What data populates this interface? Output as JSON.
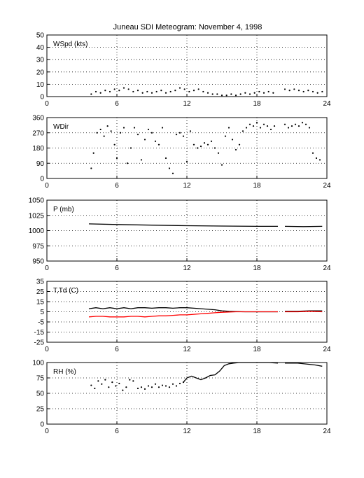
{
  "title": "Juneau SDI Meteogram:  November  4, 1998",
  "chart_data": [
    {
      "type": "scatter",
      "panel_label": "WSpd (kts)",
      "xlim": [
        0,
        24
      ],
      "xticks": [
        0,
        6,
        12,
        18,
        24
      ],
      "ylim": [
        0,
        50
      ],
      "yticks": [
        0,
        10,
        20,
        30,
        40,
        50
      ],
      "grid": true,
      "series": [
        {
          "color": "#000000",
          "style": "dots",
          "x": [
            3.8,
            4.2,
            4.6,
            5.0,
            5.4,
            5.8,
            6.2,
            6.6,
            7.0,
            7.4,
            7.8,
            8.2,
            8.6,
            9.0,
            9.4,
            9.8,
            10.2,
            10.6,
            11.0,
            11.4,
            11.8,
            12.2,
            12.6,
            13.0,
            13.4,
            13.8,
            14.2,
            14.6,
            15.0,
            15.4,
            15.8,
            16.2,
            16.6,
            17.0,
            17.4,
            17.8,
            18.2,
            18.6,
            19.0,
            19.4,
            20.4,
            20.8,
            21.2,
            21.6,
            22.0,
            22.4,
            22.8,
            23.2,
            23.6
          ],
          "y": [
            2,
            4,
            3,
            5,
            4,
            6,
            5,
            7,
            6,
            4,
            5,
            3,
            4,
            3,
            4,
            5,
            3,
            4,
            5,
            7,
            6,
            4,
            5,
            6,
            4,
            3,
            2,
            2,
            1,
            1,
            2,
            1,
            2,
            3,
            2,
            3,
            4,
            3,
            4,
            3,
            6,
            5,
            6,
            5,
            4,
            5,
            4,
            3,
            4
          ]
        }
      ]
    },
    {
      "type": "scatter",
      "panel_label": "WDir",
      "xlim": [
        0,
        24
      ],
      "xticks": [
        0,
        6,
        12,
        18,
        24
      ],
      "ylim": [
        0,
        360
      ],
      "yticks": [
        0,
        90,
        180,
        270,
        360
      ],
      "grid": true,
      "series": [
        {
          "color": "#000000",
          "style": "dots",
          "x": [
            3.8,
            4.0,
            4.3,
            4.6,
            4.9,
            5.2,
            5.5,
            5.8,
            6.0,
            6.3,
            6.6,
            6.9,
            7.2,
            7.5,
            7.8,
            8.1,
            8.4,
            8.7,
            9.0,
            9.3,
            9.6,
            9.9,
            10.2,
            10.5,
            10.8,
            11.1,
            11.4,
            11.7,
            12.0,
            12.3,
            12.6,
            12.9,
            13.2,
            13.5,
            13.8,
            14.1,
            14.4,
            14.7,
            15.0,
            15.3,
            15.6,
            15.9,
            16.2,
            16.5,
            16.8,
            17.1,
            17.4,
            17.7,
            18.0,
            18.3,
            18.6,
            18.9,
            19.2,
            19.5,
            20.4,
            20.7,
            21.0,
            21.3,
            21.6,
            21.9,
            22.2,
            22.5,
            22.8,
            23.1,
            23.4
          ],
          "y": [
            60,
            150,
            270,
            290,
            250,
            310,
            280,
            200,
            120,
            270,
            300,
            90,
            180,
            300,
            260,
            110,
            230,
            290,
            270,
            220,
            200,
            300,
            120,
            60,
            30,
            260,
            270,
            250,
            100,
            280,
            200,
            180,
            190,
            210,
            200,
            220,
            180,
            150,
            80,
            250,
            300,
            230,
            170,
            200,
            280,
            300,
            320,
            310,
            330,
            300,
            320,
            310,
            290,
            310,
            320,
            300,
            310,
            320,
            310,
            330,
            320,
            300,
            150,
            120,
            110
          ]
        }
      ]
    },
    {
      "type": "line",
      "panel_label": "P (mb)",
      "xlim": [
        0,
        24
      ],
      "xticks": [
        0,
        6,
        12,
        18,
        24
      ],
      "ylim": [
        950,
        1050
      ],
      "yticks": [
        950,
        975,
        1000,
        1025,
        1050
      ],
      "grid": true,
      "series": [
        {
          "color": "#000000",
          "style": "line",
          "x": [
            3.6,
            6.0,
            9.0,
            12.0,
            15.0,
            18.0,
            19.8
          ],
          "y": [
            1011,
            1010,
            1009,
            1008,
            1007.5,
            1007,
            1007
          ]
        },
        {
          "color": "#000000",
          "style": "line",
          "x": [
            20.4,
            22.0,
            23.6
          ],
          "y": [
            1007,
            1006.5,
            1007
          ]
        }
      ]
    },
    {
      "type": "line",
      "panel_label": "T,Td (C)",
      "xlim": [
        0,
        24
      ],
      "xticks": [
        0,
        6,
        12,
        18,
        24
      ],
      "ylim": [
        -25,
        35
      ],
      "yticks": [
        -25,
        -15,
        -5,
        5,
        15,
        25,
        35
      ],
      "grid": true,
      "series": [
        {
          "color": "#000000",
          "style": "line",
          "x": [
            3.6,
            4.2,
            4.8,
            5.4,
            6.0,
            6.6,
            7.2,
            7.8,
            8.4,
            9.0,
            9.6,
            10.2,
            10.8,
            11.4,
            12.0,
            12.6,
            13.2,
            13.8,
            14.4,
            15.0,
            15.6,
            16.2,
            17.0,
            18.0,
            19.0,
            19.8
          ],
          "y": [
            8,
            9,
            8,
            9,
            8,
            9,
            8,
            9,
            9,
            8.5,
            9,
            9,
            8.5,
            9,
            9,
            8.5,
            8,
            7.5,
            7,
            6,
            5.5,
            5.2,
            5,
            5,
            5,
            5
          ]
        },
        {
          "color": "#000000",
          "style": "line",
          "x": [
            20.4,
            21.5,
            22.5,
            23.6
          ],
          "y": [
            5.5,
            5.5,
            6,
            6
          ]
        },
        {
          "color": "#ff0000",
          "style": "line",
          "x": [
            3.6,
            4.2,
            4.8,
            5.4,
            6.0,
            6.6,
            7.2,
            7.8,
            8.4,
            9.0,
            9.6,
            10.2,
            10.8,
            11.4,
            12.0,
            12.6,
            13.2,
            13.8,
            14.4,
            15.0,
            15.6,
            16.2,
            17.0,
            18.0,
            19.0,
            19.8
          ],
          "y": [
            0,
            0.5,
            0.5,
            0,
            0,
            0,
            0.5,
            0.5,
            0,
            0.5,
            1,
            1,
            1.5,
            2,
            2,
            2.5,
            3,
            3.5,
            4,
            4.5,
            4.8,
            5,
            5,
            5,
            5,
            5
          ]
        },
        {
          "color": "#ff0000",
          "style": "line",
          "x": [
            20.4,
            21.5,
            22.5,
            23.6
          ],
          "y": [
            5,
            5,
            5.5,
            5
          ]
        }
      ]
    },
    {
      "type": "line",
      "panel_label": "RH (%)",
      "xlim": [
        0,
        24
      ],
      "xticks": [
        0,
        6,
        12,
        18,
        24
      ],
      "ylim": [
        0,
        100
      ],
      "yticks": [
        0,
        25,
        50,
        75,
        100
      ],
      "grid": true,
      "series": [
        {
          "color": "#000000",
          "style": "dots",
          "x": [
            3.8,
            4.1,
            4.4,
            4.7,
            5.0,
            5.3,
            5.6,
            5.9,
            6.2,
            6.5,
            6.8,
            7.1,
            7.4
          ],
          "y": [
            63,
            58,
            70,
            65,
            72,
            60,
            68,
            62,
            66,
            55,
            60,
            72,
            70
          ]
        },
        {
          "color": "#000000",
          "style": "dots",
          "x": [
            7.8,
            8.1,
            8.4,
            8.7,
            9.0,
            9.3,
            9.6,
            9.9,
            10.2,
            10.5,
            10.8,
            11.1,
            11.4,
            11.7
          ],
          "y": [
            58,
            60,
            57,
            62,
            60,
            65,
            60,
            63,
            62,
            60,
            65,
            62,
            66,
            68
          ]
        },
        {
          "color": "#000000",
          "style": "line",
          "x": [
            11.7,
            12.0,
            12.4,
            12.8,
            13.2,
            13.6,
            14.0,
            14.4,
            14.8,
            15.2,
            15.6,
            16.0,
            16.5,
            17.0,
            18.0,
            19.0,
            19.8
          ],
          "y": [
            68,
            75,
            78,
            75,
            72,
            75,
            79,
            80,
            86,
            95,
            98,
            99,
            100,
            100,
            100,
            100,
            99
          ]
        },
        {
          "color": "#000000",
          "style": "line",
          "x": [
            20.4,
            21.5,
            22.5,
            23.0,
            23.6
          ],
          "y": [
            99,
            99,
            97,
            96,
            94
          ]
        }
      ]
    }
  ]
}
